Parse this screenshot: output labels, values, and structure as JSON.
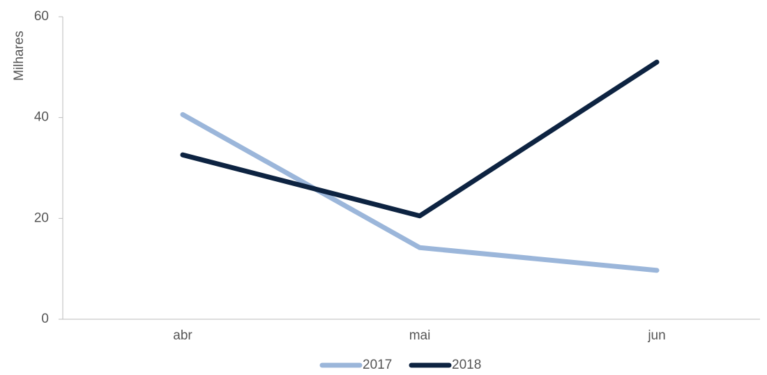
{
  "chart_data": {
    "type": "line",
    "y_label": "Milhares",
    "categories": [
      "abr",
      "mai",
      "jun"
    ],
    "series": [
      {
        "name": "2017",
        "color": "#9bb6da",
        "values": [
          40.6,
          14.2,
          9.7
        ]
      },
      {
        "name": "2018",
        "color": "#0d2341",
        "values": [
          32.6,
          20.5,
          51.0
        ]
      }
    ],
    "ylim": [
      0,
      60
    ],
    "yticks": [
      0,
      20,
      40,
      60
    ],
    "grid": false,
    "legend": "bottom"
  }
}
